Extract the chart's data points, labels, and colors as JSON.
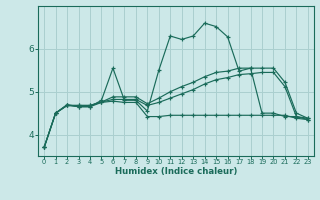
{
  "xlabel": "Humidex (Indice chaleur)",
  "bg_color": "#cce8e8",
  "grid_color": "#aacfcf",
  "line_color": "#1a6b5a",
  "x_ticks": [
    0,
    1,
    2,
    3,
    4,
    5,
    6,
    7,
    8,
    9,
    10,
    11,
    12,
    13,
    14,
    15,
    16,
    17,
    18,
    19,
    20,
    21,
    22,
    23
  ],
  "y_ticks": [
    4,
    5,
    6
  ],
  "ylim": [
    3.5,
    7.0
  ],
  "xlim": [
    -0.5,
    23.5
  ],
  "series": [
    [
      3.7,
      4.5,
      4.7,
      4.65,
      4.65,
      4.8,
      5.55,
      4.8,
      4.8,
      4.55,
      5.5,
      6.3,
      6.22,
      6.3,
      6.6,
      6.52,
      6.28,
      5.48,
      5.55,
      4.5,
      4.5,
      4.42,
      4.42,
      4.38
    ],
    [
      3.7,
      4.5,
      4.68,
      4.65,
      4.65,
      4.75,
      4.78,
      4.75,
      4.75,
      4.42,
      4.42,
      4.45,
      4.45,
      4.45,
      4.45,
      4.45,
      4.45,
      4.45,
      4.45,
      4.45,
      4.45,
      4.45,
      4.38,
      4.35
    ],
    [
      3.7,
      4.5,
      4.68,
      4.68,
      4.68,
      4.76,
      4.82,
      4.82,
      4.82,
      4.68,
      4.75,
      4.85,
      4.95,
      5.05,
      5.18,
      5.28,
      5.33,
      5.4,
      5.42,
      5.45,
      5.45,
      5.12,
      4.42,
      4.35
    ],
    [
      3.7,
      4.5,
      4.68,
      4.68,
      4.68,
      4.76,
      4.88,
      4.88,
      4.88,
      4.72,
      4.85,
      5.0,
      5.12,
      5.22,
      5.35,
      5.45,
      5.48,
      5.55,
      5.55,
      5.55,
      5.55,
      5.22,
      4.5,
      4.38
    ]
  ]
}
